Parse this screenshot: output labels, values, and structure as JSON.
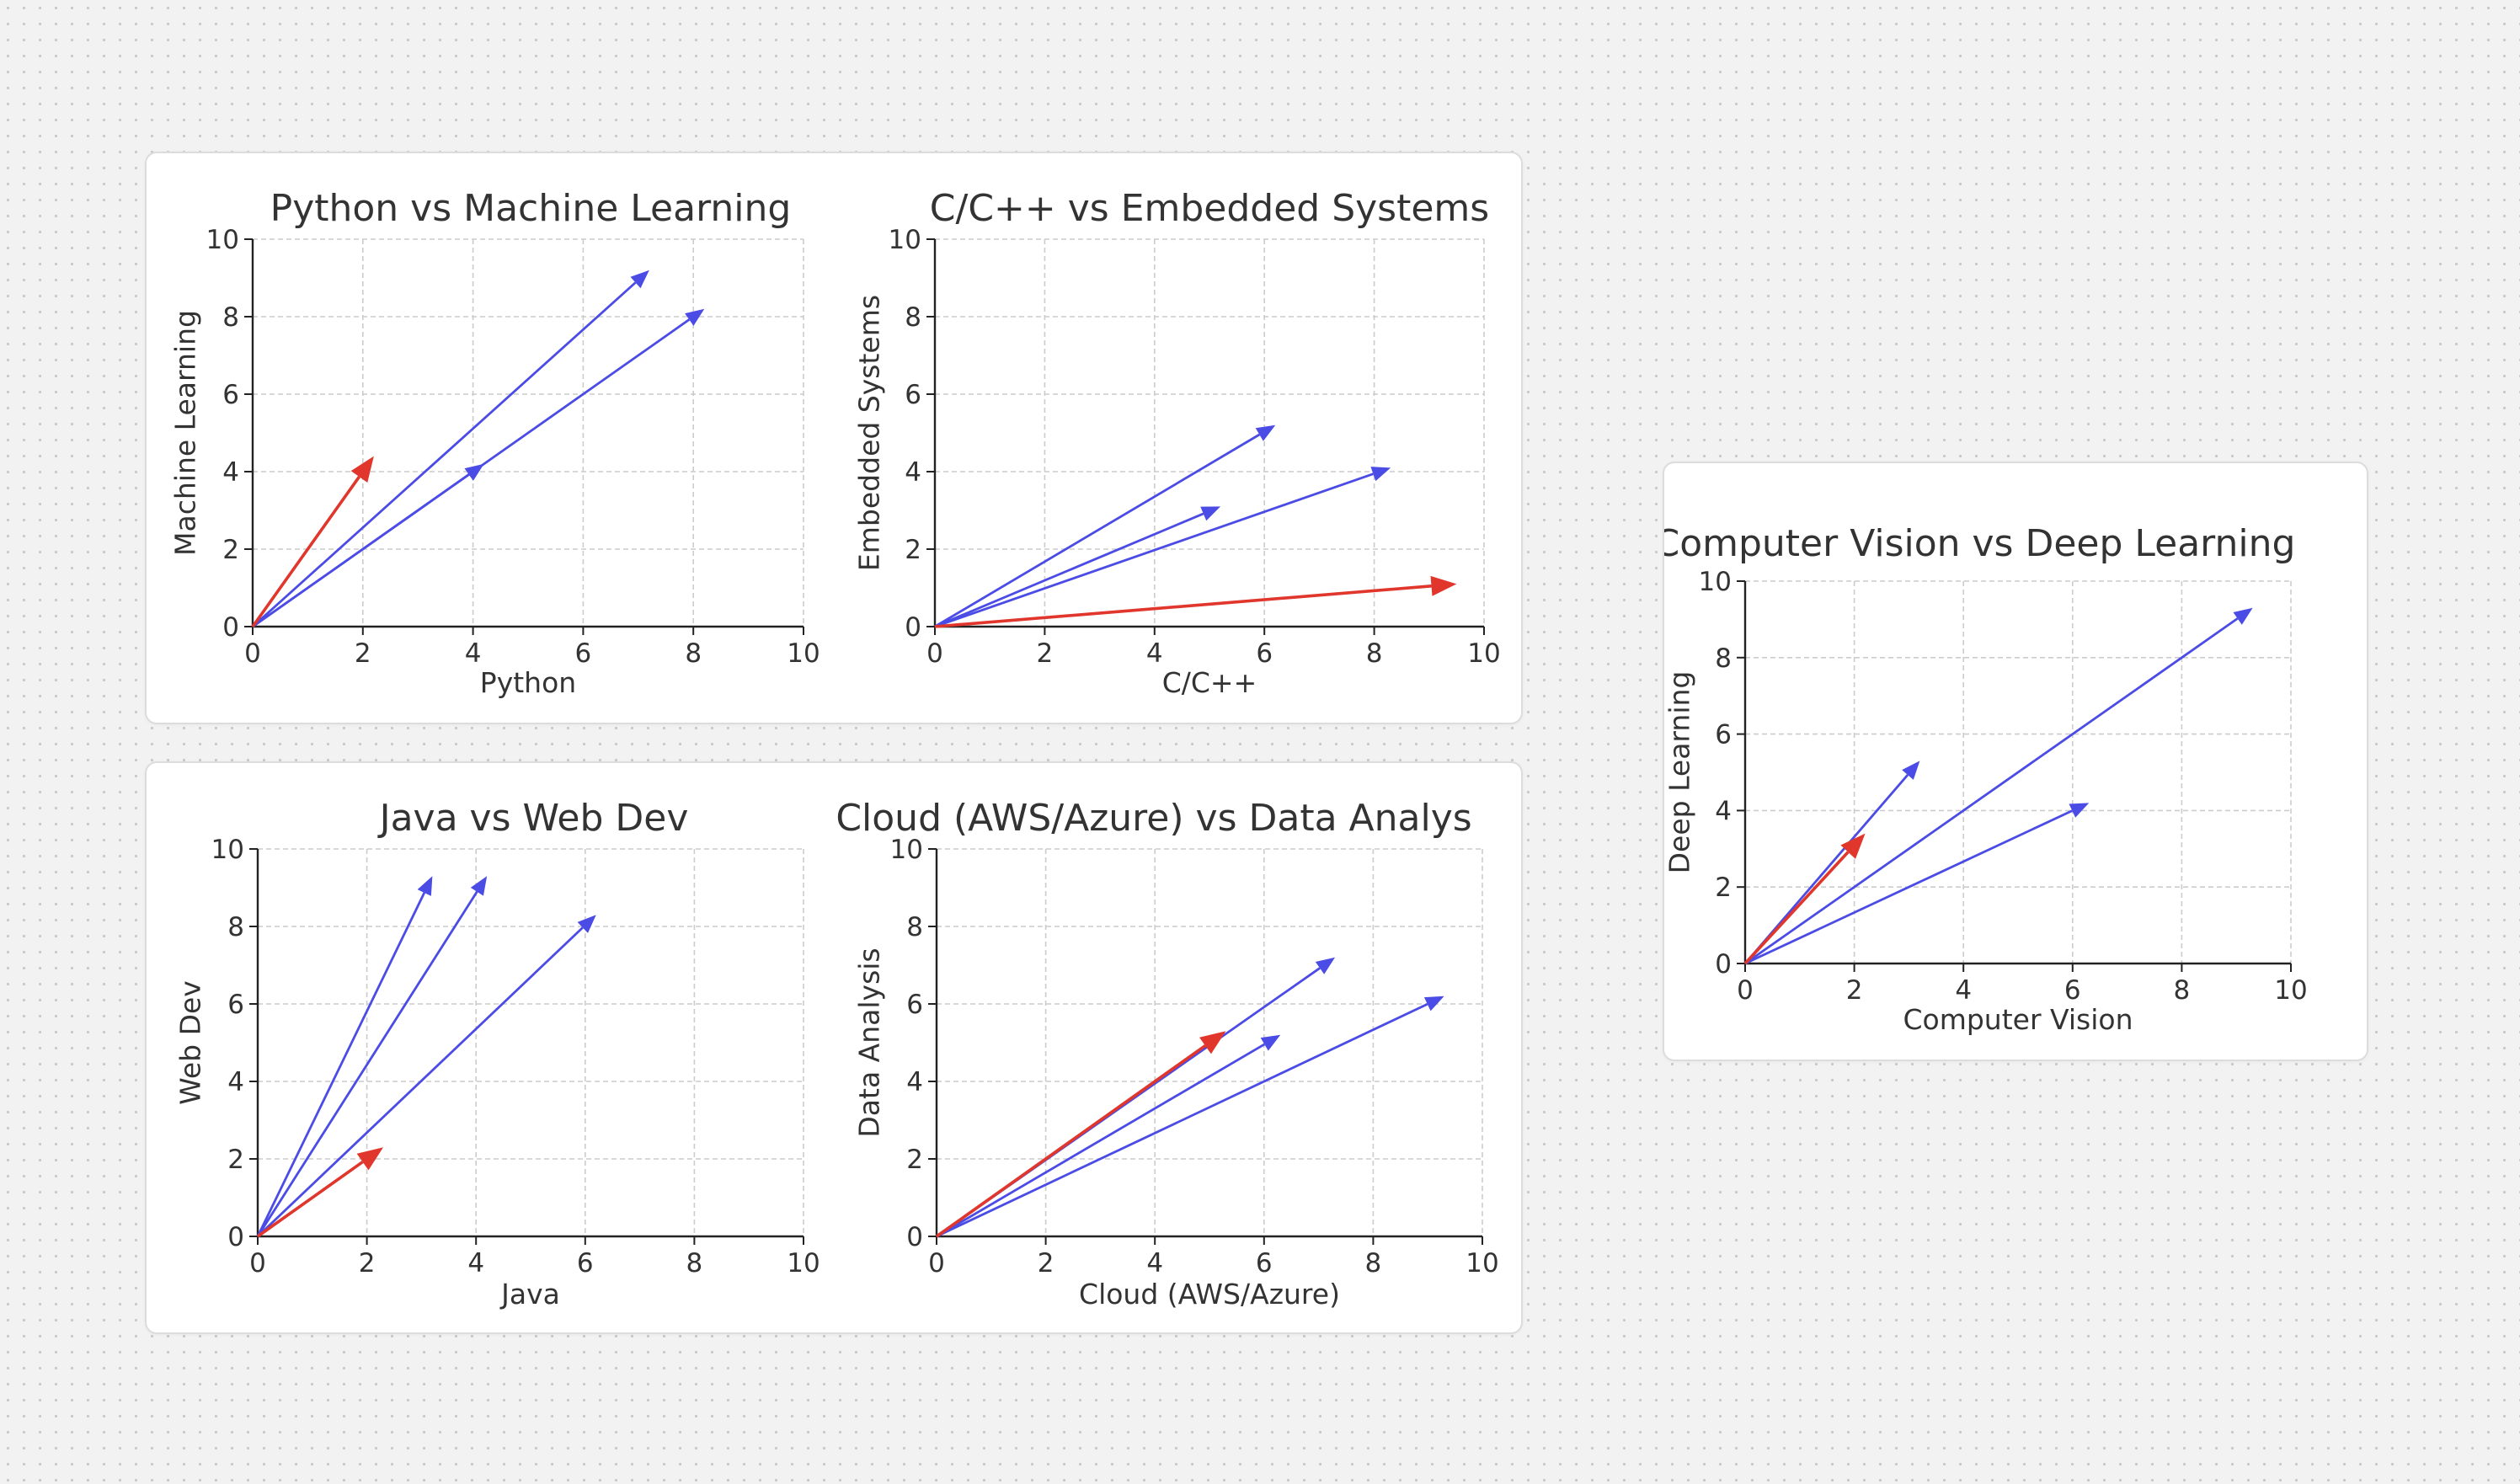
{
  "colors": {
    "accent": "#e0362c",
    "series": "#4b4be6"
  },
  "chart_data": [
    {
      "type": "quiver",
      "title": "Python vs Machine Learning",
      "xlabel": "Python",
      "ylabel": "Machine Learning",
      "xlim": [
        0,
        10
      ],
      "ylim": [
        0,
        10
      ],
      "ticks": [
        "0",
        "2",
        "4",
        "6",
        "8",
        "10"
      ],
      "grid": true,
      "vectors": [
        {
          "x": 7.2,
          "y": 9.2,
          "color": "blue"
        },
        {
          "x": 8.2,
          "y": 8.2,
          "color": "blue"
        },
        {
          "x": 4.2,
          "y": 4.2,
          "color": "blue"
        },
        {
          "x": 2.2,
          "y": 4.4,
          "color": "red"
        }
      ]
    },
    {
      "type": "quiver",
      "title": "C/C++ vs Embedded Systems",
      "xlabel": "C/C++",
      "ylabel": "Embedded Systems",
      "xlim": [
        0,
        10
      ],
      "ylim": [
        0,
        10
      ],
      "ticks": [
        "0",
        "2",
        "4",
        "6",
        "8",
        "10"
      ],
      "grid": true,
      "vectors": [
        {
          "x": 6.2,
          "y": 5.2,
          "color": "blue"
        },
        {
          "x": 5.2,
          "y": 3.1,
          "color": "blue"
        },
        {
          "x": 8.3,
          "y": 4.1,
          "color": "blue"
        },
        {
          "x": 9.5,
          "y": 1.1,
          "color": "red"
        }
      ]
    },
    {
      "type": "quiver",
      "title": "Java vs Web Dev",
      "xlabel": "Java",
      "ylabel": "Web Dev",
      "xlim": [
        0,
        10
      ],
      "ylim": [
        0,
        10
      ],
      "ticks": [
        "0",
        "2",
        "4",
        "6",
        "8",
        "10"
      ],
      "grid": true,
      "vectors": [
        {
          "x": 3.2,
          "y": 9.3,
          "color": "blue"
        },
        {
          "x": 4.2,
          "y": 9.3,
          "color": "blue"
        },
        {
          "x": 6.2,
          "y": 8.3,
          "color": "blue"
        },
        {
          "x": 2.3,
          "y": 2.3,
          "color": "red"
        }
      ]
    },
    {
      "type": "quiver",
      "title": "Cloud (AWS/Azure) vs Data Analys",
      "xlabel": "Cloud (AWS/Azure)",
      "ylabel": "Data Analysis",
      "xlim": [
        0,
        10
      ],
      "ylim": [
        0,
        10
      ],
      "ticks": [
        "0",
        "2",
        "4",
        "6",
        "8",
        "10"
      ],
      "grid": true,
      "vectors": [
        {
          "x": 7.3,
          "y": 7.2,
          "color": "blue"
        },
        {
          "x": 6.3,
          "y": 5.2,
          "color": "blue"
        },
        {
          "x": 9.3,
          "y": 6.2,
          "color": "blue"
        },
        {
          "x": 5.3,
          "y": 5.3,
          "color": "red"
        }
      ]
    },
    {
      "type": "quiver",
      "title": "s Computer Vision vs Deep Learning",
      "xlabel": "Computer Vision",
      "ylabel": "Deep Learning",
      "xlim": [
        0,
        10
      ],
      "ylim": [
        0,
        10
      ],
      "ticks": [
        "0",
        "2",
        "4",
        "6",
        "8",
        "10"
      ],
      "grid": true,
      "vectors": [
        {
          "x": 3.2,
          "y": 5.3,
          "color": "blue"
        },
        {
          "x": 9.3,
          "y": 9.3,
          "color": "blue"
        },
        {
          "x": 6.3,
          "y": 4.2,
          "color": "blue"
        },
        {
          "x": 2.2,
          "y": 3.4,
          "color": "red"
        }
      ]
    }
  ]
}
